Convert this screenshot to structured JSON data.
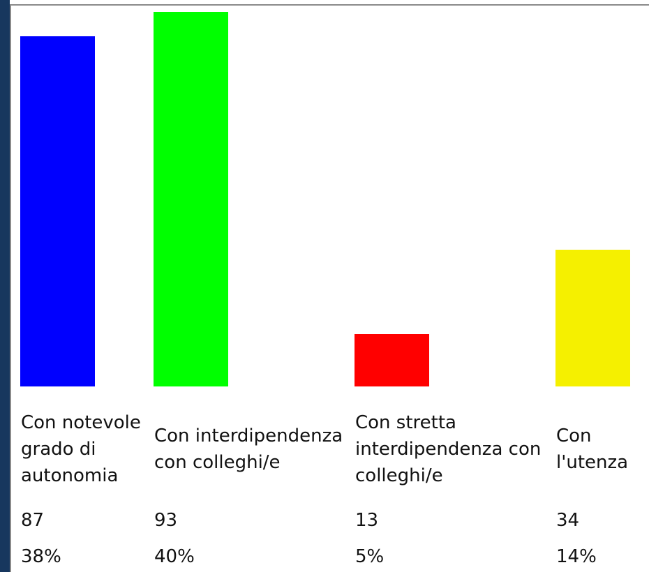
{
  "chart_data": {
    "type": "bar",
    "categories": [
      "Con notevole grado di autonomia",
      "Con interdipendenza con colleghi/e",
      "Con stretta interdipendenza con colleghi/e",
      "Con l'utenza"
    ],
    "values": [
      87,
      93,
      13,
      34
    ],
    "share_labels": [
      "38%",
      "40%",
      "5%",
      "14%"
    ],
    "colors": [
      "#0000ff",
      "#00ff00",
      "#ff0000",
      "#f5f000"
    ]
  }
}
